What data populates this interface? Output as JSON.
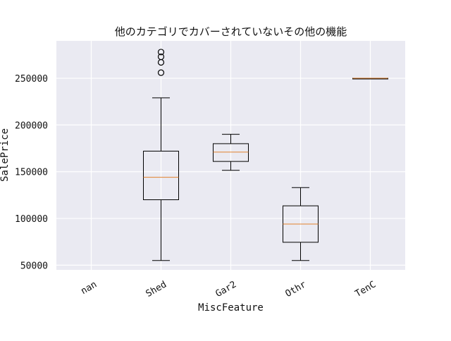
{
  "chart_data": {
    "type": "box",
    "title": "他のカテゴリでカバーされていないその他の機能",
    "xlabel": "MiscFeature",
    "ylabel": "SalePrice",
    "categories": [
      "nan",
      "Shed",
      "Gar2",
      "Othr",
      "TenC"
    ],
    "ylim": [
      45000,
      290000
    ],
    "yticks": [
      50000,
      100000,
      150000,
      200000,
      250000
    ],
    "yticklabels": [
      "50000",
      "100000",
      "150000",
      "200000",
      "250000"
    ],
    "grid": true,
    "boxes": [
      {
        "category": "nan",
        "empty": true
      },
      {
        "category": "Shed",
        "whisker_low": 55000,
        "q1": 120000,
        "median": 144000,
        "q3": 172000,
        "whisker_high": 229000,
        "outliers": [
          256000,
          267000,
          273000,
          278000
        ]
      },
      {
        "category": "Gar2",
        "whisker_low": 151500,
        "q1": 161000,
        "median": 171000,
        "q3": 180000,
        "whisker_high": 190000,
        "outliers": []
      },
      {
        "category": "Othr",
        "whisker_low": 55000,
        "q1": 74500,
        "median": 94000,
        "q3": 113500,
        "whisker_high": 133000,
        "outliers": []
      },
      {
        "category": "TenC",
        "whisker_low": 250000,
        "q1": 250000,
        "median": 250000,
        "q3": 250000,
        "whisker_high": 250000,
        "outliers": []
      }
    ],
    "colors": {
      "background": "#eaeaf2",
      "grid": "#ffffff",
      "box": "#000000",
      "median": "#e1812c"
    }
  }
}
